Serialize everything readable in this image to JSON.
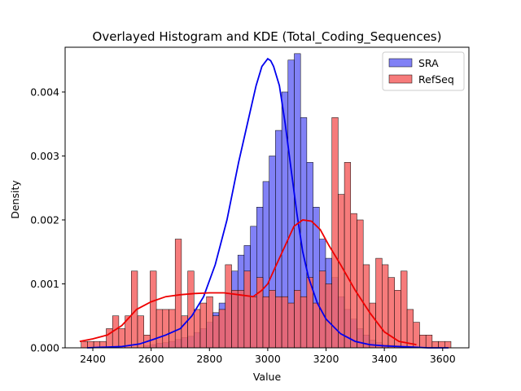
{
  "chart_data": {
    "type": "histogram",
    "title": "Overlayed Histogram and KDE (Total_Coding_Sequences)",
    "xlabel": "Value",
    "ylabel": "Density",
    "xlim": [
      2305,
      3690
    ],
    "ylim": [
      0,
      0.0047
    ],
    "x_ticks": [
      2400,
      2600,
      2800,
      3000,
      3200,
      3400,
      3600
    ],
    "x_tick_labels": [
      "2400",
      "2600",
      "2800",
      "3000",
      "3200",
      "3400",
      "3600"
    ],
    "y_ticks": [
      0,
      0.001,
      0.002,
      0.003,
      0.004
    ],
    "y_tick_labels": [
      "0.000",
      "0.001",
      "0.002",
      "0.003",
      "0.004"
    ],
    "legend_position": "top-right",
    "series": [
      {
        "name": "SRA",
        "fill_color": "#6b6bf5",
        "line_color": "#0000ee",
        "bin_start": 2360,
        "bin_width": 21.5,
        "bin_values": [
          0,
          0,
          0,
          0,
          0,
          0,
          0,
          0,
          0,
          0,
          3e-05,
          5e-05,
          7e-05,
          8e-05,
          0.0001,
          0.00013,
          0.00016,
          0.00018,
          0.00024,
          0.0003,
          0.0004,
          0.00055,
          0.0007,
          0.00085,
          0.0012,
          0.00145,
          0.0016,
          0.0019,
          0.0022,
          0.0026,
          0.003,
          0.0034,
          0.004,
          0.0045,
          0.0046,
          0.0036,
          0.0029,
          0.0022,
          0.0017,
          0.0014,
          0.0011,
          0.0008,
          0.0006,
          0.00045,
          0.0003,
          0.0002,
          0.00012,
          8e-05,
          5e-05,
          4e-05,
          3e-05,
          2e-05,
          0,
          0,
          0,
          0,
          0,
          0,
          0
        ],
        "kde_x": [
          2380,
          2500,
          2560,
          2600,
          2650,
          2700,
          2740,
          2780,
          2820,
          2860,
          2900,
          2940,
          2960,
          2980,
          3000,
          3010,
          3020,
          3040,
          3060,
          3080,
          3100,
          3120,
          3140,
          3170,
          3200,
          3250,
          3300,
          3350,
          3400,
          3450,
          3500,
          3550,
          3600,
          3620
        ],
        "kde_y": [
          0,
          2e-05,
          6e-05,
          0.00012,
          0.0002,
          0.0003,
          0.0005,
          0.0008,
          0.0013,
          0.002,
          0.0029,
          0.0037,
          0.0041,
          0.0044,
          0.00452,
          0.00449,
          0.0044,
          0.0041,
          0.0035,
          0.0028,
          0.0021,
          0.0015,
          0.0011,
          0.0007,
          0.00045,
          0.00022,
          0.0001,
          5e-05,
          3e-05,
          2e-05,
          1e-05,
          0,
          0,
          0
        ]
      },
      {
        "name": "RefSeq",
        "fill_color": "#f46464",
        "line_color": "#ee0000",
        "bin_start": 2360,
        "bin_width": 21.5,
        "bin_values": [
          0.0001,
          0.0001,
          0.0001,
          0.0001,
          0.0003,
          0.0005,
          0.0003,
          0.0005,
          0.0012,
          0.0005,
          0.0002,
          0.0012,
          0.0006,
          0.0006,
          0.0006,
          0.0017,
          0.0005,
          0.0012,
          0.0006,
          0.0007,
          0.0008,
          0.0005,
          0.0006,
          0.0013,
          0.0009,
          0.0009,
          0.0012,
          0.0008,
          0.0011,
          0.0008,
          0.0009,
          0.0008,
          0.0008,
          0.0007,
          0.0009,
          0.0008,
          0.0011,
          0.0007,
          0.0012,
          0.001,
          0.0036,
          0.0024,
          0.0029,
          0.0021,
          0.002,
          0.0013,
          0.0007,
          0.0014,
          0.0013,
          0.0011,
          0.0009,
          0.0012,
          0.0006,
          0.0004,
          0.0002,
          0.0002,
          0.0001,
          0.0001,
          0.0001
        ],
        "kde_x": [
          2355,
          2400,
          2450,
          2500,
          2550,
          2600,
          2650,
          2700,
          2750,
          2800,
          2850,
          2900,
          2950,
          2980,
          3000,
          3030,
          3060,
          3090,
          3120,
          3150,
          3180,
          3210,
          3250,
          3300,
          3350,
          3400,
          3450,
          3510
        ],
        "kde_y": [
          0.0001,
          0.00014,
          0.0002,
          0.00035,
          0.0006,
          0.00072,
          0.0008,
          0.00083,
          0.00085,
          0.00086,
          0.00086,
          0.00083,
          0.0008,
          0.0009,
          0.001,
          0.0013,
          0.0016,
          0.0019,
          0.002,
          0.00198,
          0.00185,
          0.0016,
          0.0013,
          0.0009,
          0.00055,
          0.00025,
          0.0001,
          5e-05
        ]
      }
    ]
  }
}
